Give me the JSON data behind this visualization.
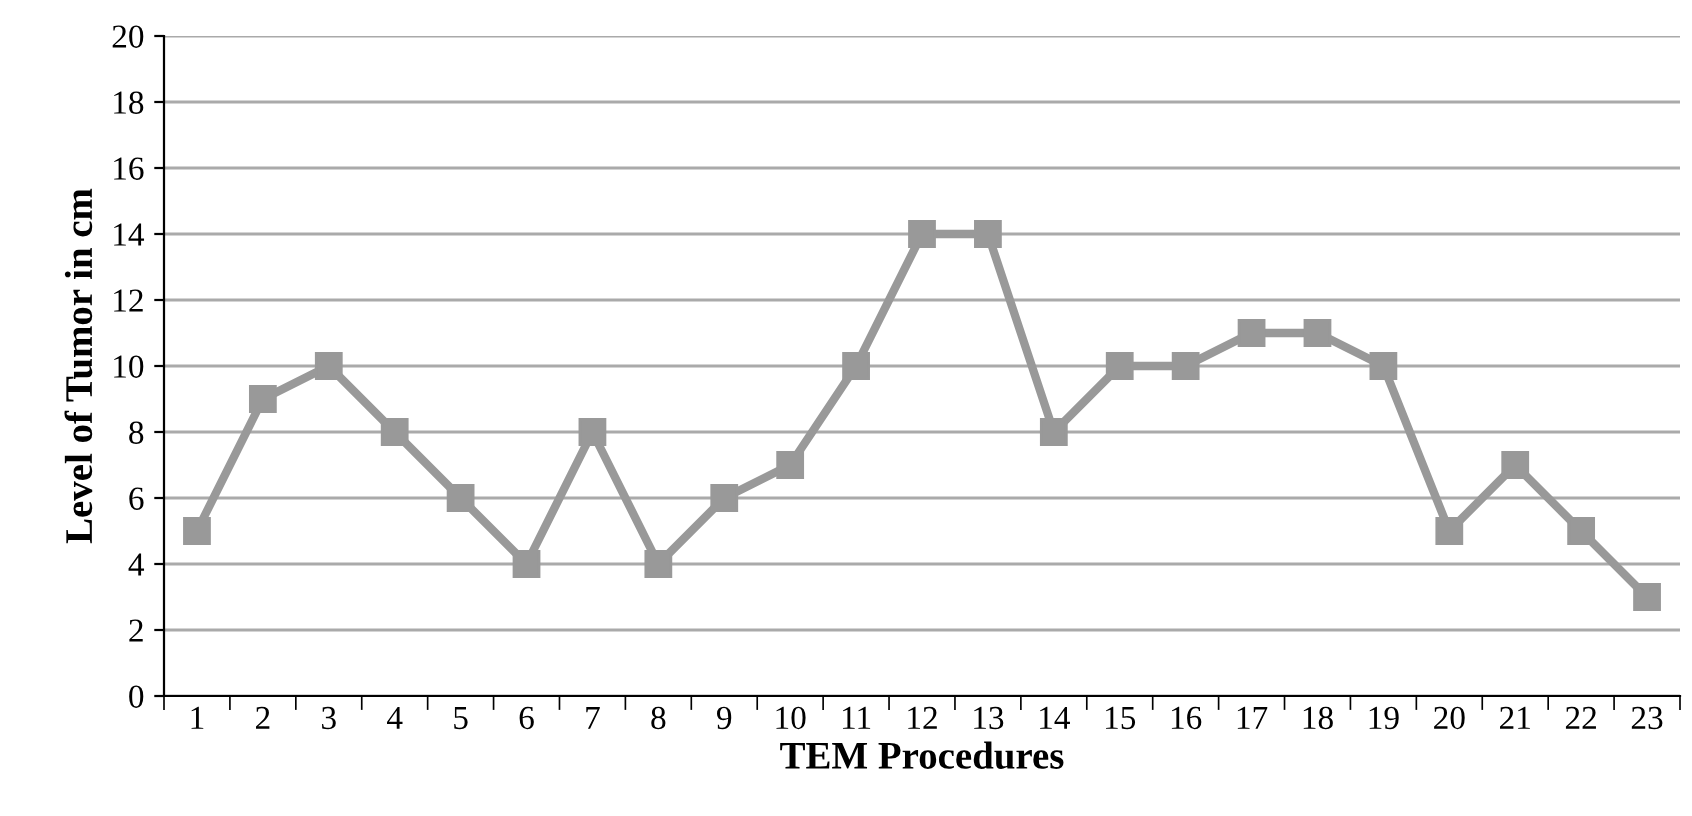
{
  "chart_data": {
    "type": "line",
    "xlabel": "TEM Procedures",
    "ylabel": "Level of Tumor in cm",
    "categories": [
      "1",
      "2",
      "3",
      "4",
      "5",
      "6",
      "7",
      "8",
      "9",
      "10",
      "11",
      "12",
      "13",
      "14",
      "15",
      "16",
      "17",
      "18",
      "19",
      "20",
      "21",
      "22",
      "23"
    ],
    "series": [
      {
        "color": "#999999",
        "values": [
          5,
          9,
          10,
          8,
          6,
          4,
          8,
          4,
          6,
          7,
          10,
          14,
          14,
          8,
          10,
          10,
          11,
          11,
          10,
          5,
          7,
          5,
          3
        ]
      }
    ],
    "ylim": [
      0,
      20
    ],
    "yticks": [
      0,
      2,
      4,
      6,
      8,
      10,
      12,
      14,
      16,
      18,
      20
    ],
    "grid": "y",
    "marker": "square",
    "line_style": "solid"
  }
}
